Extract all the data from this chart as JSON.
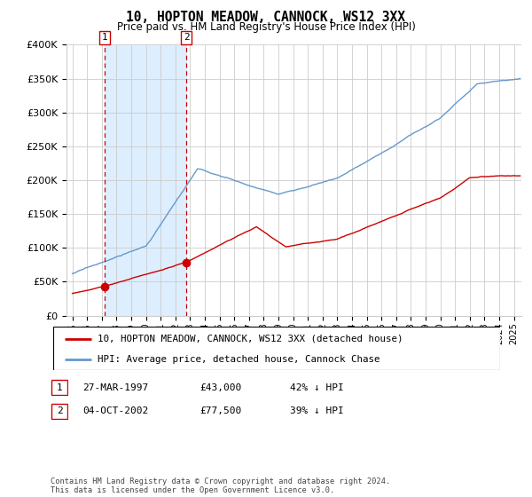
{
  "title": "10, HOPTON MEADOW, CANNOCK, WS12 3XX",
  "subtitle": "Price paid vs. HM Land Registry's House Price Index (HPI)",
  "legend_label_red": "10, HOPTON MEADOW, CANNOCK, WS12 3XX (detached house)",
  "legend_label_blue": "HPI: Average price, detached house, Cannock Chase",
  "footer": "Contains HM Land Registry data © Crown copyright and database right 2024.\nThis data is licensed under the Open Government Licence v3.0.",
  "ylim": [
    0,
    400000
  ],
  "yticks": [
    0,
    50000,
    100000,
    150000,
    200000,
    250000,
    300000,
    350000,
    400000
  ],
  "red_color": "#cc0000",
  "blue_color": "#6699cc",
  "shade_color": "#ddeeff",
  "grid_color": "#cccccc",
  "vline_color": "#cc0000",
  "t1_year": 1997.21,
  "t2_year": 2002.75,
  "t1_price": 43000,
  "t2_price": 77500,
  "t1_label": "1",
  "t2_label": "2",
  "t1_date": "27-MAR-1997",
  "t2_date": "04-OCT-2002",
  "t1_pct": "42% ↓ HPI",
  "t2_pct": "39% ↓ HPI",
  "t1_price_str": "£43,000",
  "t2_price_str": "£77,500"
}
